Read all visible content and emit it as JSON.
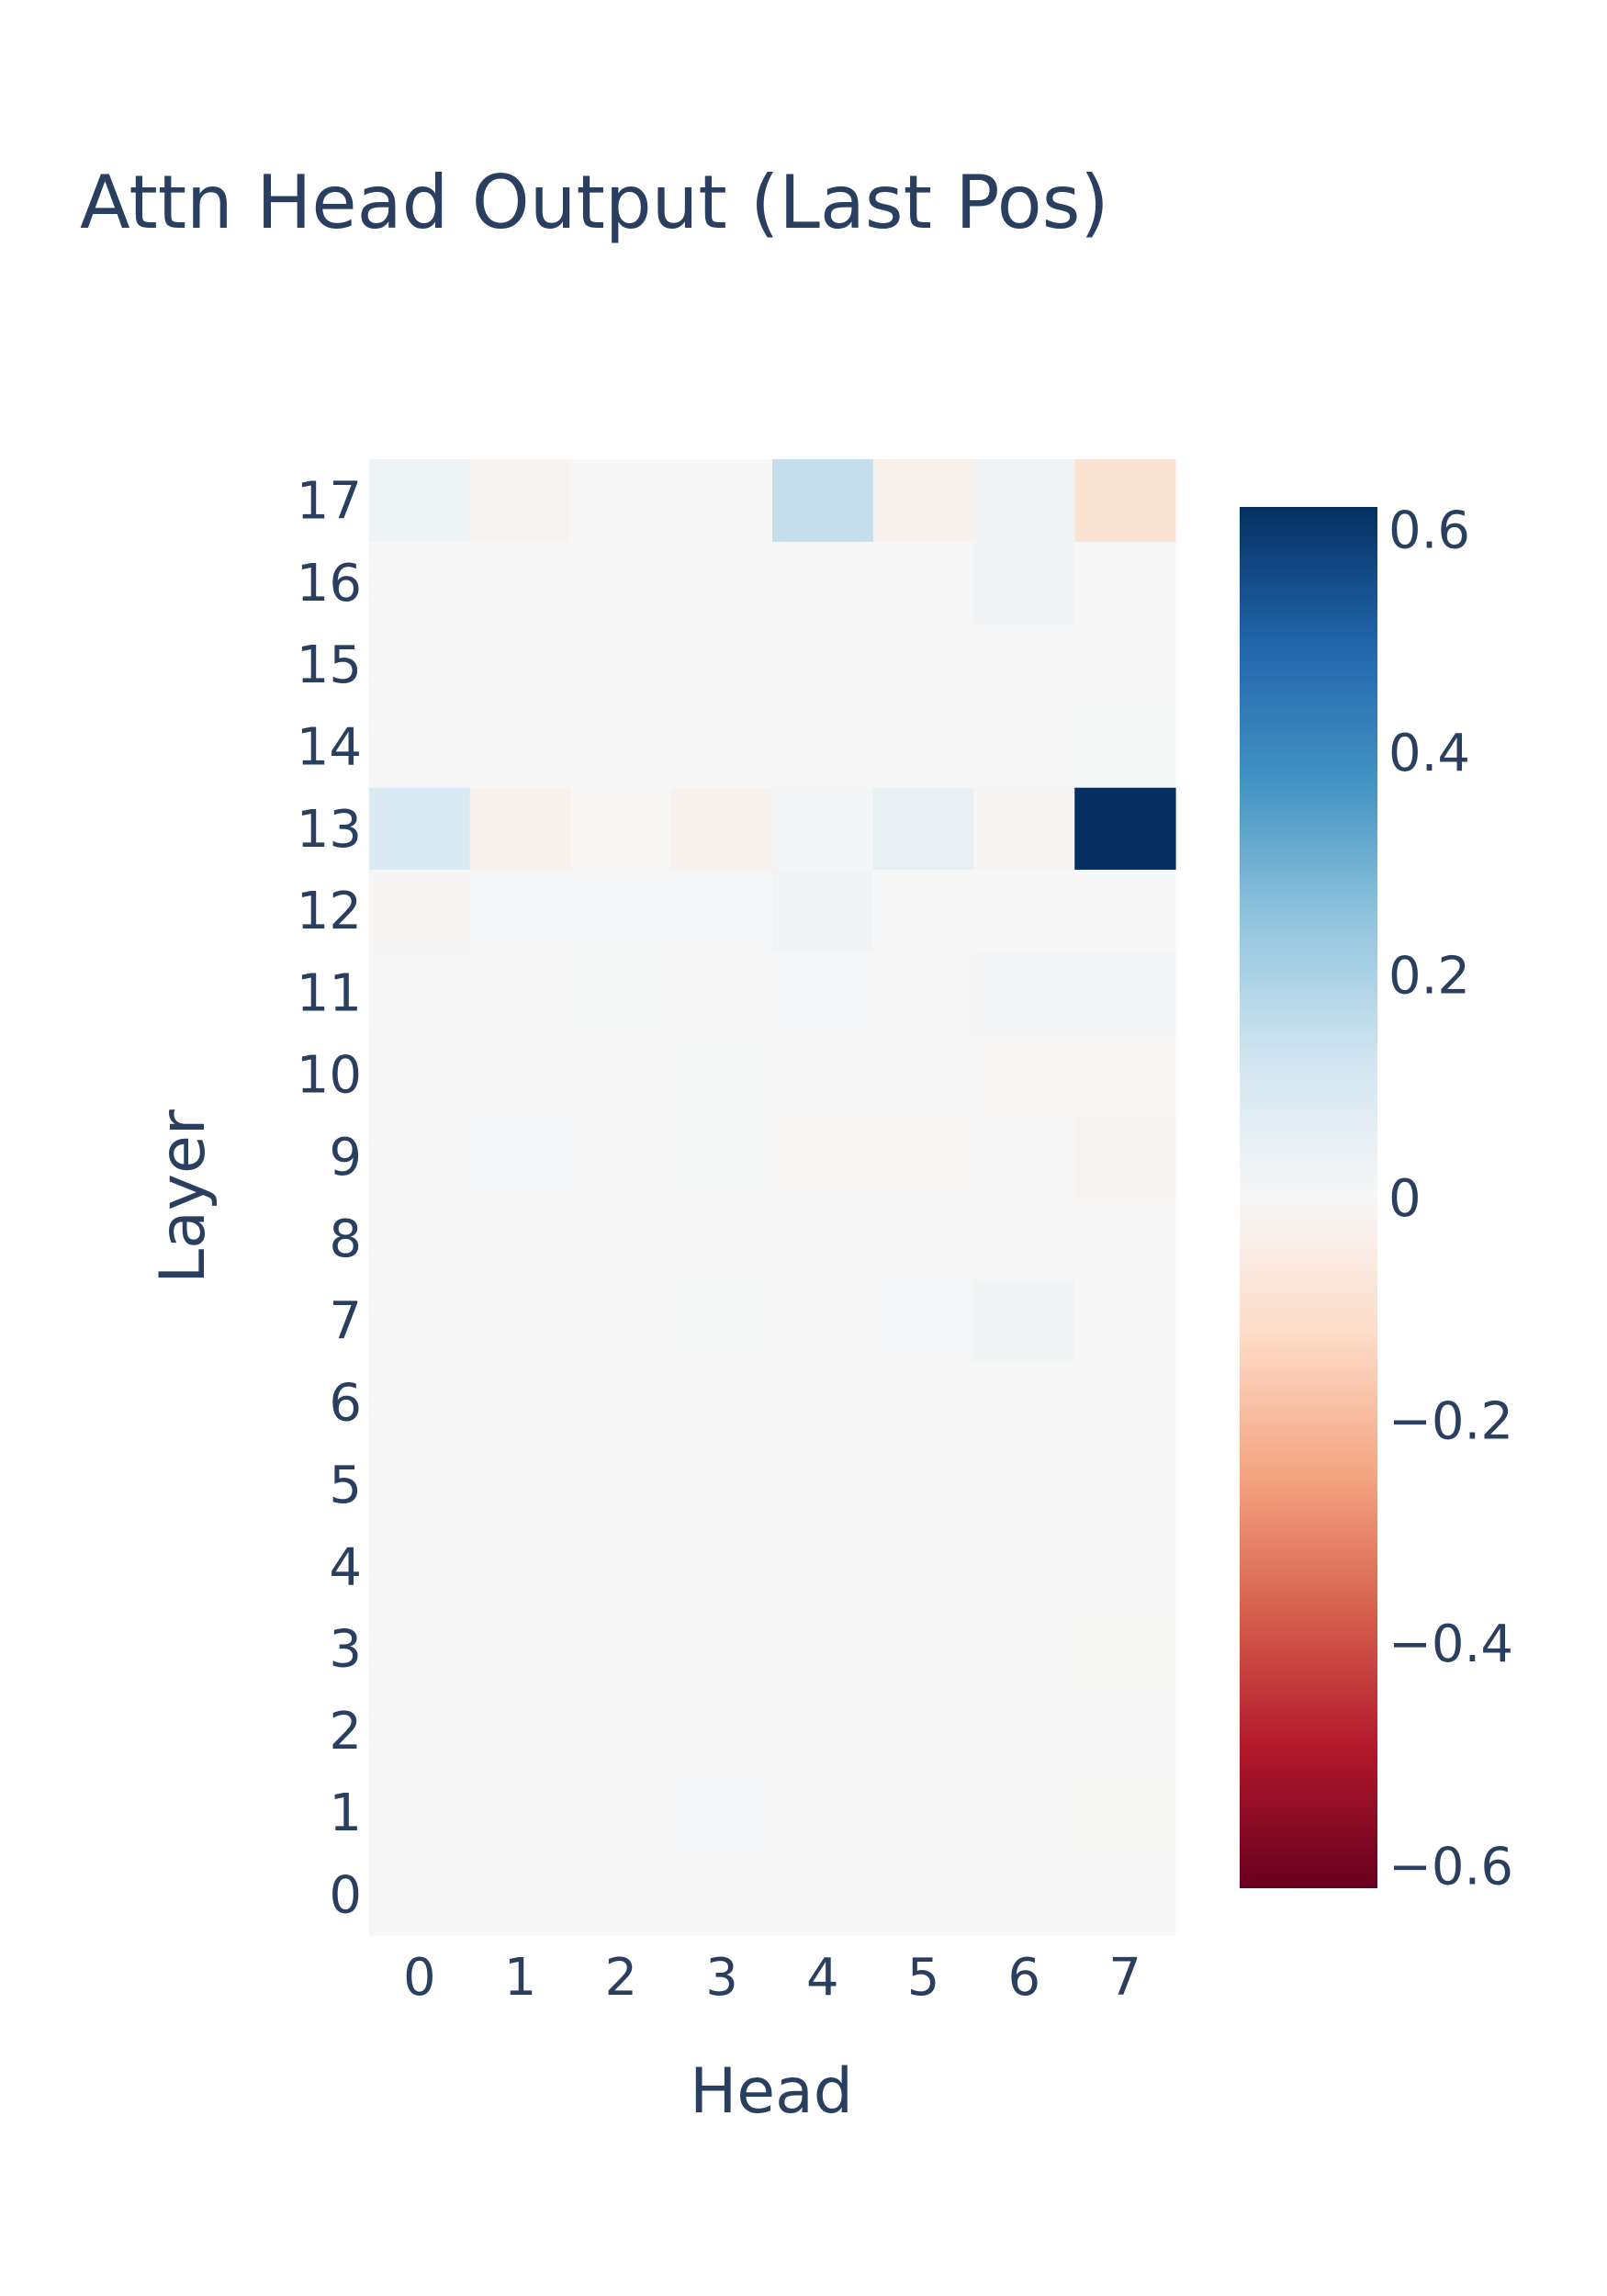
{
  "chart_data": {
    "type": "heatmap",
    "title": "Attn Head Output (Last Pos)",
    "xlabel": "Head",
    "ylabel": "Layer",
    "x": [
      "0",
      "1",
      "2",
      "3",
      "4",
      "5",
      "6",
      "7"
    ],
    "y": [
      "0",
      "1",
      "2",
      "3",
      "4",
      "5",
      "6",
      "7",
      "8",
      "9",
      "10",
      "11",
      "12",
      "13",
      "14",
      "15",
      "16",
      "17"
    ],
    "z": [
      [
        0,
        0,
        0,
        0,
        0,
        0,
        0,
        0
      ],
      [
        0,
        0,
        0,
        0.005,
        0,
        0,
        0,
        -0.002
      ],
      [
        0,
        0,
        0,
        0,
        0,
        0,
        0,
        0
      ],
      [
        0,
        0,
        0,
        0,
        0,
        0,
        0,
        -0.002
      ],
      [
        0,
        0,
        0,
        0,
        0,
        0,
        0,
        -0.003
      ],
      [
        0,
        0,
        0,
        0.004,
        0,
        0,
        0,
        0
      ],
      [
        0,
        0,
        -0.003,
        0.004,
        0,
        0,
        0,
        0
      ],
      [
        0,
        0,
        0,
        0.002,
        0,
        0.005,
        0.015,
        0
      ],
      [
        0,
        0,
        0,
        0,
        0,
        0,
        0,
        0
      ],
      [
        0,
        0.006,
        0.004,
        0.003,
        -0.005,
        -0.004,
        0,
        -0.015
      ],
      [
        0,
        0,
        0,
        0.003,
        0,
        -0.003,
        -0.004,
        -0.006
      ],
      [
        0.004,
        0.004,
        0.003,
        0.004,
        0.006,
        0.004,
        0.012,
        0.012
      ],
      [
        -0.008,
        0.006,
        0.008,
        0.006,
        0.02,
        0.004,
        0,
        0
      ],
      [
        0.09,
        -0.03,
        -0.005,
        -0.025,
        0.012,
        0.05,
        -0.01,
        0.62
      ],
      [
        0,
        0,
        -0.003,
        0,
        0,
        0,
        0,
        0.003
      ],
      [
        0,
        0,
        0,
        0.004,
        0,
        0,
        0,
        0
      ],
      [
        0,
        0,
        0,
        0,
        0,
        0,
        0.02,
        0
      ],
      [
        0.03,
        -0.015,
        0,
        0,
        0.15,
        -0.03,
        0.025,
        -0.09
      ]
    ],
    "zmin": -0.62,
    "zmax": 0.62,
    "colorscale": [
      "#67001f",
      "#b2182b",
      "#d6604d",
      "#f4a582",
      "#fddbc7",
      "#f7f7f7",
      "#d1e5f0",
      "#92c5de",
      "#4393c3",
      "#2166ac",
      "#053061"
    ],
    "colorbar_ticks": [
      0.6,
      0.4,
      0.2,
      0,
      -0.2,
      -0.4,
      -0.6
    ],
    "colorbar_tick_labels": [
      "0.6",
      "0.4",
      "0.2",
      "0",
      "−0.2",
      "−0.4",
      "−0.6"
    ]
  }
}
